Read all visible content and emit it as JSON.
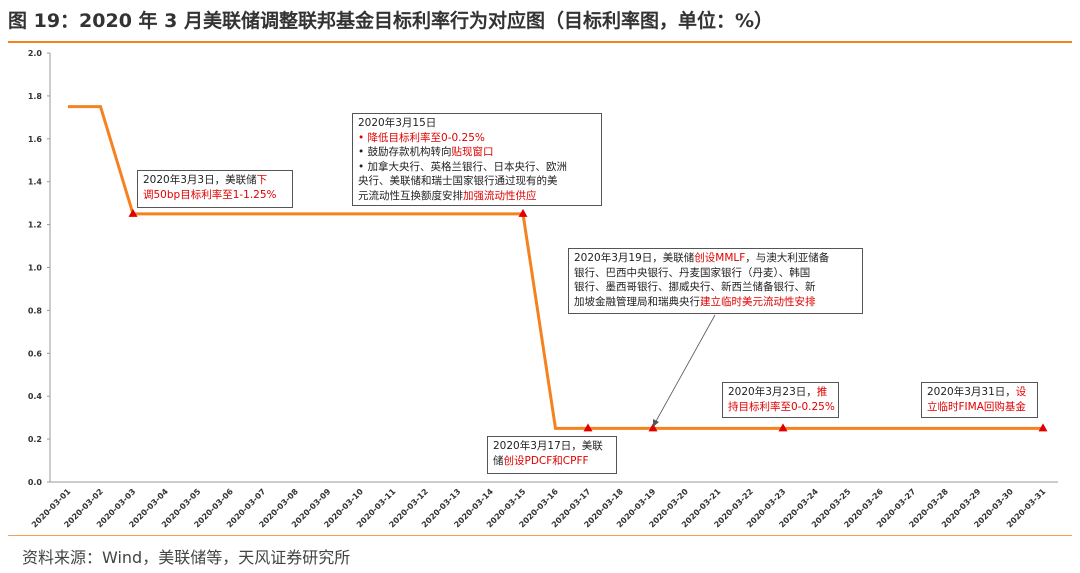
{
  "title": "图 19：2020 年 3 月美联储调整联邦基金目标利率行为对应图（目标利率图，单位：%）",
  "source": "资料来源：Wind，美联储等，天风证券研究所",
  "chart_data": {
    "type": "line",
    "categories": [
      "2020-03-01",
      "2020-03-02",
      "2020-03-03",
      "2020-03-04",
      "2020-03-05",
      "2020-03-06",
      "2020-03-07",
      "2020-03-08",
      "2020-03-09",
      "2020-03-10",
      "2020-03-11",
      "2020-03-12",
      "2020-03-13",
      "2020-03-14",
      "2020-03-15",
      "2020-03-16",
      "2020-03-17",
      "2020-03-18",
      "2020-03-19",
      "2020-03-20",
      "2020-03-21",
      "2020-03-22",
      "2020-03-23",
      "2020-03-24",
      "2020-03-25",
      "2020-03-26",
      "2020-03-27",
      "2020-03-28",
      "2020-03-29",
      "2020-03-30",
      "2020-03-31"
    ],
    "series": [
      {
        "color": "#f5821f",
        "values": [
          1.75,
          1.75,
          1.25,
          1.25,
          1.25,
          1.25,
          1.25,
          1.25,
          1.25,
          1.25,
          1.25,
          1.25,
          1.25,
          1.25,
          1.25,
          0.25,
          0.25,
          0.25,
          0.25,
          0.25,
          0.25,
          0.25,
          0.25,
          0.25,
          0.25,
          0.25,
          0.25,
          0.25,
          0.25,
          0.25,
          0.25
        ]
      }
    ],
    "markers": [
      "2020-03-03",
      "2020-03-15",
      "2020-03-17",
      "2020-03-19",
      "2020-03-23",
      "2020-03-31"
    ],
    "marker_color": "#e00000",
    "ylim": [
      0,
      2
    ],
    "yticks": [
      {
        "value": 0,
        "label": "0.0"
      },
      0.2,
      0.4,
      0.6,
      0.8,
      {
        "value": 1,
        "label": "1.0"
      },
      1.2,
      1.4,
      1.6,
      1.8,
      {
        "value": 2,
        "label": "2.0"
      }
    ],
    "annotations": [
      {
        "lines": [
          [
            {
              "text": "2020年3月3日，美联储"
            },
            {
              "text": "下",
              "color": "#e00000"
            }
          ],
          [
            {
              "text": "调50bp目标利率至1-1.25%",
              "color": "#e00000"
            }
          ]
        ]
      },
      {
        "lines": [
          [
            {
              "text": "2020年3月15日"
            }
          ],
          [
            {
              "text": "• 降低目标利率至0-0.25%",
              "color": "#e00000"
            }
          ],
          [
            {
              "text": "• 鼓励存款机构转向"
            },
            {
              "text": "贴现窗口",
              "color": "#e00000"
            }
          ],
          [
            {
              "text": "• 加拿大央行、英格兰银行、日本央行、欧洲"
            }
          ],
          [
            {
              "text": "央行、美联储和瑞士国家银行通过现有的美"
            }
          ],
          [
            {
              "text": "元流动性互换额度安排"
            },
            {
              "text": "加强流动性供应",
              "color": "#e00000"
            }
          ]
        ]
      },
      {
        "lines": [
          [
            {
              "text": "2020年3月19日，美联储"
            },
            {
              "text": "创设MMLF",
              "color": "#e00000"
            },
            {
              "text": "，与澳大利亚储备"
            }
          ],
          [
            {
              "text": "银行、巴西中央银行、丹麦国家银行（丹麦）、韩国"
            }
          ],
          [
            {
              "text": "银行、墨西哥银行、挪威央行、新西兰储备银行、新"
            }
          ],
          [
            {
              "text": "加坡金融管理局和瑞典央行"
            },
            {
              "text": "建立临时美元流动性安排",
              "color": "#e00000"
            }
          ]
        ]
      },
      {
        "lines": [
          [
            {
              "text": "2020年3月17日，美联"
            }
          ],
          [
            {
              "text": "储"
            },
            {
              "text": "创设PDCF和CPFF",
              "color": "#e00000"
            }
          ]
        ]
      },
      {
        "lines": [
          [
            {
              "text": "2020年3月23日，"
            },
            {
              "text": "推",
              "color": "#e00000"
            }
          ],
          [
            {
              "text": "持目标利率至0-0.25%",
              "color": "#e00000"
            }
          ]
        ]
      },
      {
        "lines": [
          [
            {
              "text": "2020年3月31日，"
            },
            {
              "text": "设",
              "color": "#e00000"
            }
          ],
          [
            {
              "text": "立临时FIMA回购基金",
              "color": "#e00000"
            }
          ]
        ]
      }
    ]
  }
}
